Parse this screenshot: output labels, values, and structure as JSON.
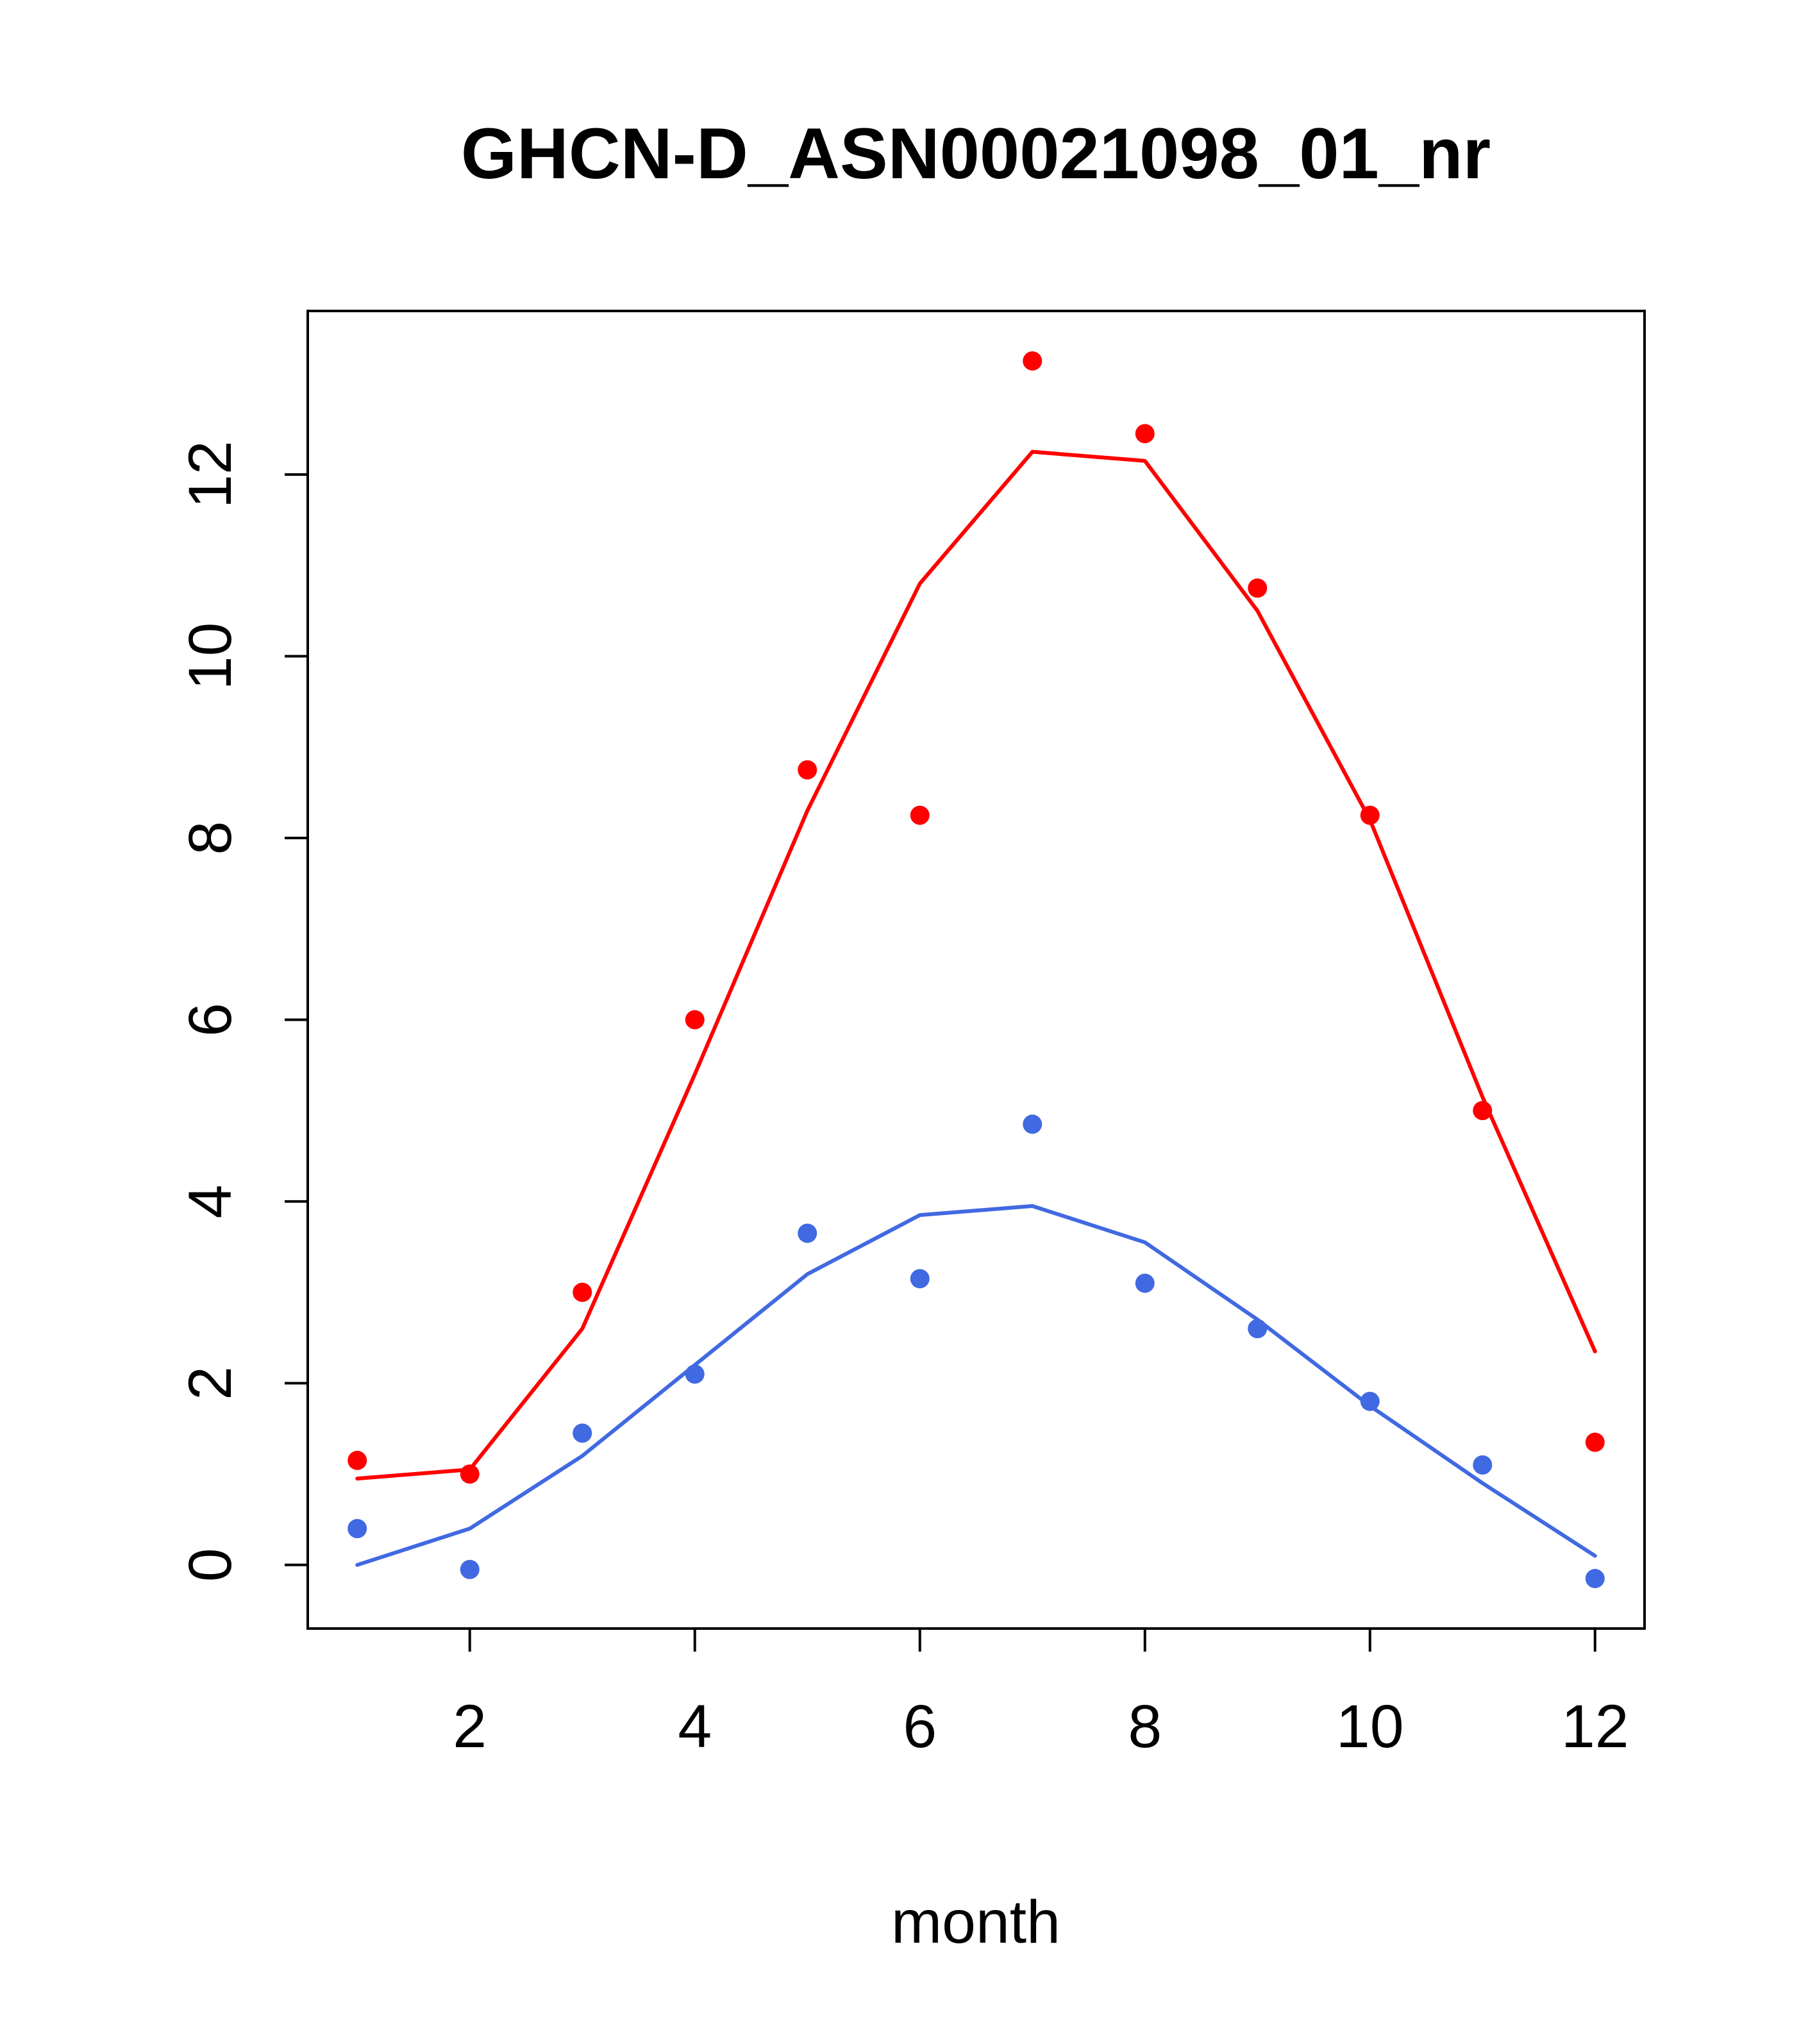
{
  "page": {
    "background": "#ffffff"
  },
  "chart_data": {
    "type": "scatter",
    "title": "GHCN-D_ASN00021098_01_nr",
    "xlabel": "month",
    "ylabel": "",
    "grid": false,
    "legend": "none",
    "x": [
      1,
      2,
      3,
      4,
      5,
      6,
      7,
      8,
      9,
      10,
      11,
      12
    ],
    "xlim": [
      0.56,
      12.44
    ],
    "ylim": [
      -0.7,
      13.8
    ],
    "xticks": [
      2,
      4,
      6,
      8,
      10,
      12
    ],
    "yticks": [
      0,
      2,
      4,
      6,
      8,
      10,
      12
    ],
    "colors": {
      "red": "#ff0000",
      "blue": "#4169e1",
      "axis": "#000000"
    },
    "series": [
      {
        "name": "red-points",
        "style": "points",
        "color": "#ff0000",
        "values": [
          1.15,
          1.0,
          3.0,
          6.0,
          8.75,
          8.25,
          13.25,
          12.45,
          10.75,
          8.25,
          5.0,
          1.35
        ]
      },
      {
        "name": "red-line",
        "style": "line",
        "color": "#ff0000",
        "values": [
          0.95,
          1.05,
          2.6,
          5.4,
          8.3,
          10.8,
          12.25,
          12.15,
          10.5,
          8.2,
          5.15,
          2.35
        ]
      },
      {
        "name": "blue-points",
        "style": "points",
        "color": "#4169e1",
        "values": [
          0.4,
          -0.05,
          1.45,
          2.1,
          3.65,
          3.15,
          4.85,
          3.1,
          2.6,
          1.8,
          1.1,
          -0.15
        ]
      },
      {
        "name": "blue-line",
        "style": "line",
        "color": "#4169e1",
        "values": [
          0.0,
          0.4,
          1.2,
          2.2,
          3.2,
          3.85,
          3.95,
          3.55,
          2.7,
          1.75,
          0.9,
          0.1
        ]
      }
    ]
  }
}
